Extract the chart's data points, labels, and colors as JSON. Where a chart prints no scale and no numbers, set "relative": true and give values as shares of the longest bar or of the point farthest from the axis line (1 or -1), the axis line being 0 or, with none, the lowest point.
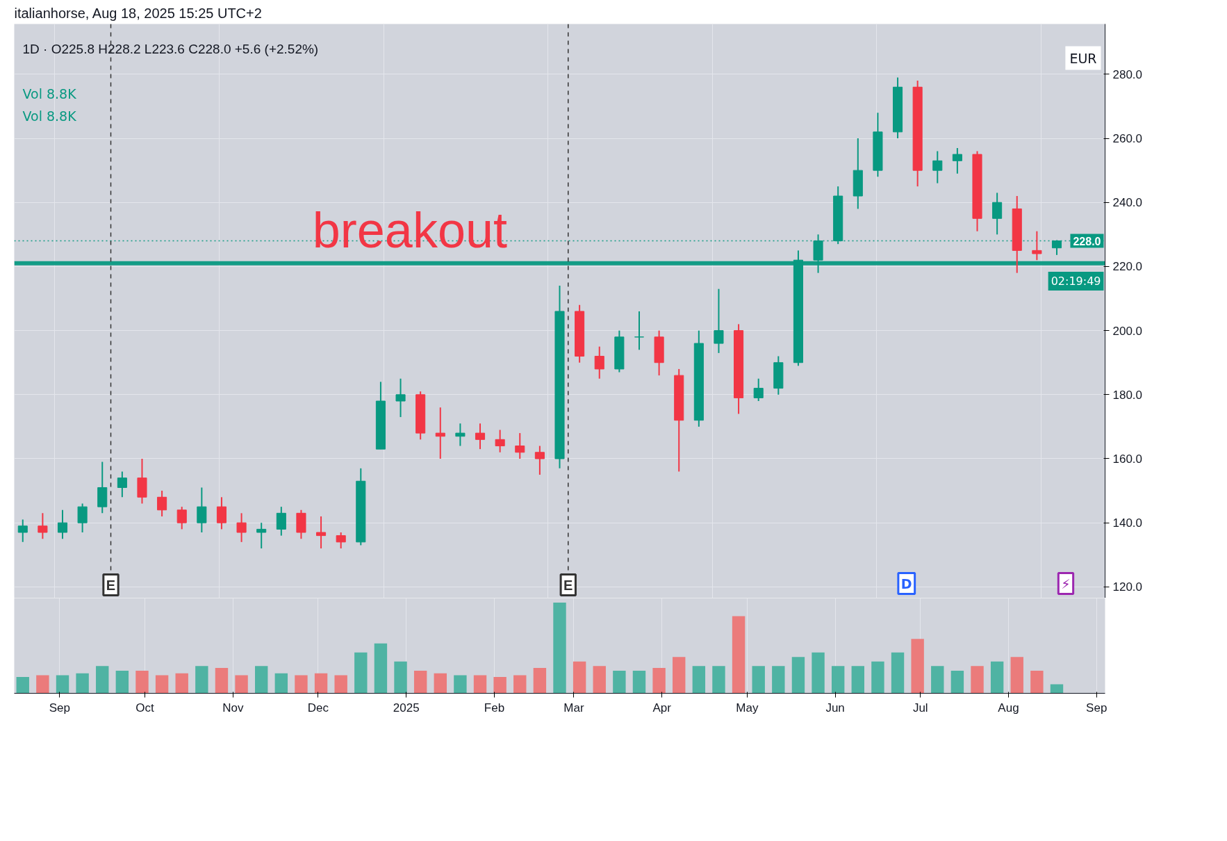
{
  "chart_data": [
    {
      "type": "candlestick",
      "title": "italianhorse, Aug 18, 2025 15:25 UTC+2",
      "subtitle": "1D · O225.8 H228.2 L223.6 C228.0 +5.6 (+2.52%)",
      "x": [
        "2024-08-19",
        "2024-08-26",
        "2024-09-02",
        "2024-09-09",
        "2024-09-16",
        "2024-09-23",
        "2024-09-30",
        "2024-10-07",
        "2024-10-14",
        "2024-10-21",
        "2024-10-28",
        "2024-11-04",
        "2024-11-11",
        "2024-11-18",
        "2024-11-25",
        "2024-12-02",
        "2024-12-09",
        "2024-12-16",
        "2024-12-23",
        "2024-12-30",
        "2025-01-06",
        "2025-01-13",
        "2025-01-20",
        "2025-01-27",
        "2025-02-03",
        "2025-02-10",
        "2025-02-17",
        "2025-02-24",
        "2025-03-03",
        "2025-03-10",
        "2025-03-17",
        "2025-03-24",
        "2025-03-31",
        "2025-04-07",
        "2025-04-14",
        "2025-04-21",
        "2025-04-28",
        "2025-05-05",
        "2025-05-12",
        "2025-05-19",
        "2025-05-26",
        "2025-06-02",
        "2025-06-09",
        "2025-06-16",
        "2025-06-23",
        "2025-06-30",
        "2025-07-07",
        "2025-07-14",
        "2025-07-21",
        "2025-07-28",
        "2025-08-04",
        "2025-08-11",
        "2025-08-18"
      ],
      "ohlc": [
        [
          137,
          141,
          134,
          139
        ],
        [
          139,
          143,
          135,
          137
        ],
        [
          137,
          144,
          135,
          140
        ],
        [
          140,
          146,
          137,
          145
        ],
        [
          145,
          159,
          143,
          151
        ],
        [
          151,
          156,
          148,
          154
        ],
        [
          154,
          160,
          146,
          148
        ],
        [
          148,
          150,
          142,
          144
        ],
        [
          144,
          145,
          138,
          140
        ],
        [
          140,
          151,
          137,
          145
        ],
        [
          145,
          148,
          138,
          140
        ],
        [
          140,
          143,
          134,
          137
        ],
        [
          137,
          140,
          132,
          138
        ],
        [
          138,
          145,
          136,
          143
        ],
        [
          143,
          144,
          135,
          137
        ],
        [
          137,
          142,
          132,
          136
        ],
        [
          136,
          137,
          132,
          134
        ],
        [
          134,
          157,
          133,
          153
        ],
        [
          163,
          184,
          163,
          178
        ],
        [
          178,
          185,
          173,
          180
        ],
        [
          180,
          181,
          166,
          168
        ],
        [
          168,
          176,
          160,
          167
        ],
        [
          167,
          171,
          164,
          168
        ],
        [
          168,
          171,
          163,
          166
        ],
        [
          166,
          169,
          162,
          164
        ],
        [
          164,
          168,
          160,
          162
        ],
        [
          162,
          164,
          155,
          160
        ],
        [
          160,
          214,
          157,
          206
        ],
        [
          206,
          208,
          190,
          192
        ],
        [
          192,
          195,
          185,
          188
        ],
        [
          188,
          200,
          187,
          198
        ],
        [
          198,
          206,
          194,
          198
        ],
        [
          198,
          200,
          186,
          190
        ],
        [
          186,
          188,
          156,
          172
        ],
        [
          172,
          200,
          170,
          196
        ],
        [
          196,
          213,
          193,
          200
        ],
        [
          200,
          202,
          174,
          179
        ],
        [
          179,
          185,
          178,
          182
        ],
        [
          182,
          192,
          180,
          190
        ],
        [
          190,
          225,
          189,
          222
        ],
        [
          222,
          230,
          218,
          228
        ],
        [
          228,
          245,
          227,
          242
        ],
        [
          242,
          260,
          238,
          250
        ],
        [
          250,
          268,
          248,
          262
        ],
        [
          262,
          279,
          260,
          276
        ],
        [
          276,
          278,
          245,
          250
        ],
        [
          250,
          256,
          246,
          253
        ],
        [
          253,
          257,
          249,
          255
        ],
        [
          255,
          256,
          231,
          235
        ],
        [
          235,
          243,
          230,
          240
        ],
        [
          238,
          242,
          218,
          225
        ],
        [
          225,
          231,
          222,
          224
        ],
        [
          225.8,
          228.2,
          223.6,
          228.0
        ]
      ],
      "colors": [
        "#089981",
        "#f23645",
        "#089981",
        "#089981",
        "#089981",
        "#089981",
        "#f23645",
        "#f23645",
        "#f23645",
        "#089981",
        "#f23645",
        "#f23645",
        "#089981",
        "#089981",
        "#f23645",
        "#f23645",
        "#f23645",
        "#089981",
        "#089981",
        "#089981",
        "#f23645",
        "#f23645",
        "#089981",
        "#f23645",
        "#f23645",
        "#f23645",
        "#f23645",
        "#089981",
        "#f23645",
        "#f23645",
        "#089981",
        "#089981",
        "#f23645",
        "#f23645",
        "#089981",
        "#089981",
        "#f23645",
        "#089981",
        "#089981",
        "#089981",
        "#089981",
        "#089981",
        "#089981",
        "#089981",
        "#089981",
        "#f23645",
        "#089981",
        "#089981",
        "#f23645",
        "#089981",
        "#f23645",
        "#f23645",
        "#089981"
      ],
      "xlim": [
        "2024-08-16",
        "2025-09-04"
      ],
      "ylim": [
        116.5,
        295.7
      ],
      "yticks": [
        {
          "value": 120,
          "label": "120.0"
        },
        {
          "value": 140,
          "label": "140.0"
        },
        {
          "value": 160,
          "label": "160.0"
        },
        {
          "value": 180,
          "label": "180.0"
        },
        {
          "value": 200,
          "label": "200.0"
        },
        {
          "value": 220,
          "label": "220.0"
        },
        {
          "value": 240,
          "label": "240.0"
        },
        {
          "value": 260,
          "label": "260.0"
        },
        {
          "value": 280,
          "label": "280.0"
        }
      ],
      "tick_labels": "y",
      "grid": true,
      "ref_lines": [
        {
          "axis": "y",
          "value": 228.0,
          "label": "228.0",
          "color": "#089981",
          "line_style": "dotted"
        },
        {
          "axis": "y",
          "value": 221,
          "label": "breakout",
          "color": "#089981",
          "line_style": "solid"
        },
        {
          "axis": "x",
          "value": "2024-09-19",
          "label": "E",
          "color": "#333333",
          "line_style": "dashed"
        },
        {
          "axis": "x",
          "value": "2025-02-27",
          "label": "E",
          "color": "#333333",
          "line_style": "dashed"
        }
      ],
      "annotations": [
        "Vol 8.8K",
        "Vol 8.8K",
        "EUR",
        "02:19:49",
        "D",
        "⚡"
      ]
    },
    {
      "type": "bar",
      "relative": true,
      "x": [
        "2024-08-19",
        "2024-08-26",
        "2024-09-02",
        "2024-09-09",
        "2024-09-16",
        "2024-09-23",
        "2024-09-30",
        "2024-10-07",
        "2024-10-14",
        "2024-10-21",
        "2024-10-28",
        "2024-11-04",
        "2024-11-11",
        "2024-11-18",
        "2024-11-25",
        "2024-12-02",
        "2024-12-09",
        "2024-12-16",
        "2024-12-23",
        "2024-12-30",
        "2025-01-06",
        "2025-01-13",
        "2025-01-20",
        "2025-01-27",
        "2025-02-03",
        "2025-02-10",
        "2025-02-17",
        "2025-02-24",
        "2025-03-03",
        "2025-03-10",
        "2025-03-17",
        "2025-03-24",
        "2025-03-31",
        "2025-04-07",
        "2025-04-14",
        "2025-04-21",
        "2025-04-28",
        "2025-05-05",
        "2025-05-12",
        "2025-05-19",
        "2025-05-26",
        "2025-06-02",
        "2025-06-09",
        "2025-06-16",
        "2025-06-23",
        "2025-06-30",
        "2025-07-07",
        "2025-07-14",
        "2025-07-21",
        "2025-07-28",
        "2025-08-04",
        "2025-08-11",
        "2025-08-18"
      ],
      "values": [
        0.18,
        0.2,
        0.2,
        0.22,
        0.3,
        0.25,
        0.25,
        0.2,
        0.22,
        0.3,
        0.28,
        0.2,
        0.3,
        0.22,
        0.2,
        0.22,
        0.2,
        0.45,
        0.55,
        0.35,
        0.25,
        0.22,
        0.2,
        0.2,
        0.18,
        0.2,
        0.28,
        1.0,
        0.35,
        0.3,
        0.25,
        0.25,
        0.28,
        0.4,
        0.3,
        0.3,
        0.85,
        0.3,
        0.3,
        0.4,
        0.45,
        0.3,
        0.3,
        0.35,
        0.45,
        0.6,
        0.3,
        0.25,
        0.3,
        0.35,
        0.4,
        0.25,
        0.1
      ],
      "colors": [
        "#4fb3a3",
        "#eb7b7b",
        "#4fb3a3",
        "#4fb3a3",
        "#4fb3a3",
        "#4fb3a3",
        "#eb7b7b",
        "#eb7b7b",
        "#eb7b7b",
        "#4fb3a3",
        "#eb7b7b",
        "#eb7b7b",
        "#4fb3a3",
        "#4fb3a3",
        "#eb7b7b",
        "#eb7b7b",
        "#eb7b7b",
        "#4fb3a3",
        "#4fb3a3",
        "#4fb3a3",
        "#eb7b7b",
        "#eb7b7b",
        "#4fb3a3",
        "#eb7b7b",
        "#eb7b7b",
        "#eb7b7b",
        "#eb7b7b",
        "#4fb3a3",
        "#eb7b7b",
        "#eb7b7b",
        "#4fb3a3",
        "#4fb3a3",
        "#eb7b7b",
        "#eb7b7b",
        "#4fb3a3",
        "#4fb3a3",
        "#eb7b7b",
        "#4fb3a3",
        "#4fb3a3",
        "#4fb3a3",
        "#4fb3a3",
        "#4fb3a3",
        "#4fb3a3",
        "#4fb3a3",
        "#4fb3a3",
        "#eb7b7b",
        "#4fb3a3",
        "#4fb3a3",
        "#eb7b7b",
        "#4fb3a3",
        "#eb7b7b",
        "#eb7b7b",
        "#4fb3a3"
      ],
      "xlim": [
        "2024-08-16",
        "2025-09-04"
      ],
      "xticks": [
        {
          "value": "2024-09-01",
          "label": "Sep"
        },
        {
          "value": "2024-10-01",
          "label": "Oct"
        },
        {
          "value": "2024-11-01",
          "label": "Nov"
        },
        {
          "value": "2024-12-01",
          "label": "Dec"
        },
        {
          "value": "2025-01-01",
          "label": "2025"
        },
        {
          "value": "2025-02-01",
          "label": "Feb"
        },
        {
          "value": "2025-03-01",
          "label": "Mar"
        },
        {
          "value": "2025-04-01",
          "label": "Apr"
        },
        {
          "value": "2025-05-01",
          "label": "May"
        },
        {
          "value": "2025-06-01",
          "label": "Jun"
        },
        {
          "value": "2025-07-01",
          "label": "Jul"
        },
        {
          "value": "2025-08-01",
          "label": "Aug"
        },
        {
          "value": "2025-09-01",
          "label": "Sep"
        }
      ],
      "tick_labels": "x",
      "grid": "x"
    }
  ]
}
